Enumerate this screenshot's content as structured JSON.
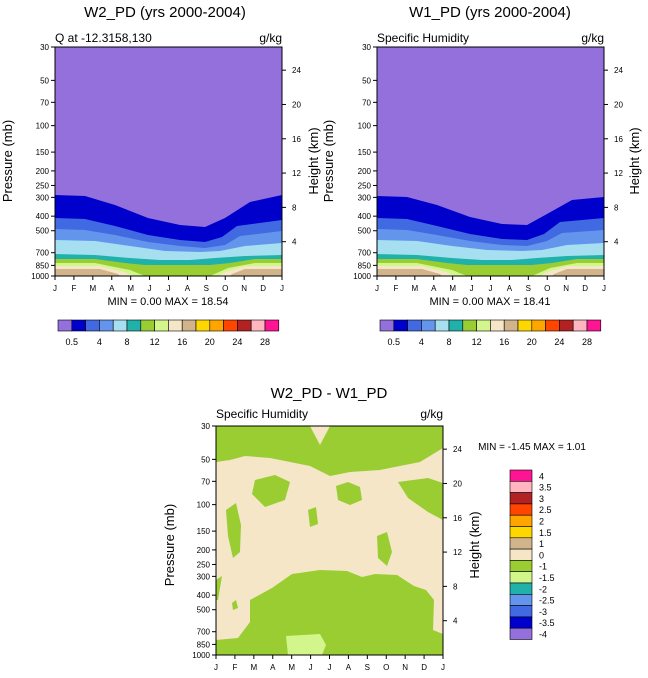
{
  "palette": {
    "levels": [
      "0.5",
      "4",
      "8",
      "12",
      "16",
      "20",
      "24",
      "28"
    ],
    "colors": [
      "#9370db",
      "#0000cd",
      "#4169e1",
      "#6495ed",
      "#a6e0f0",
      "#20b2aa",
      "#9acd32",
      "#d2f58c",
      "#f5e6c8",
      "#d2b48c",
      "#ffd700",
      "#ffa500",
      "#ff4500",
      "#b22222",
      "#ffb6c1",
      "#ff1493"
    ]
  },
  "chart_data": [
    {
      "type": "heatmap",
      "title": "W2_PD (yrs 2000-2004)",
      "subtitle_left": "Q at -12.3158,130",
      "subtitle_right": "g/kg",
      "ylabel": "Pressure (mb)",
      "ylabel_right": "Height (km)",
      "x_ticks": [
        "J",
        "F",
        "M",
        "A",
        "M",
        "J",
        "J",
        "A",
        "S",
        "O",
        "N",
        "D",
        "J"
      ],
      "y_ticks": [
        "30",
        "50",
        "70",
        "100",
        "150",
        "200",
        "250",
        "300",
        "400",
        "500",
        "700",
        "850",
        "1000"
      ],
      "height_ticks": [
        "24",
        "20",
        "16",
        "12",
        "8",
        "4"
      ],
      "min_max": "MIN =   0.00 MAX =  18.54",
      "min": 0.0,
      "max": 18.54
    },
    {
      "type": "heatmap",
      "title": "W1_PD (yrs 2000-2004)",
      "subtitle_left": "Specific Humidity",
      "subtitle_right": "g/kg",
      "ylabel": "Pressure (mb)",
      "ylabel_right": "Height (km)",
      "x_ticks": [
        "J",
        "F",
        "M",
        "A",
        "M",
        "J",
        "J",
        "A",
        "S",
        "O",
        "N",
        "D",
        "J"
      ],
      "y_ticks": [
        "30",
        "50",
        "70",
        "100",
        "150",
        "200",
        "250",
        "300",
        "400",
        "500",
        "700",
        "850",
        "1000"
      ],
      "height_ticks": [
        "24",
        "20",
        "16",
        "12",
        "8",
        "4"
      ],
      "min_max": "MIN =   0.00 MAX =  18.41",
      "min": 0.0,
      "max": 18.41
    },
    {
      "type": "heatmap",
      "title": "W2_PD - W1_PD",
      "subtitle_left": "Specific Humidity",
      "subtitle_right": "g/kg",
      "ylabel": "Pressure (mb)",
      "ylabel_right": "Height (km)",
      "x_ticks": [
        "J",
        "F",
        "M",
        "A",
        "M",
        "J",
        "J",
        "A",
        "S",
        "O",
        "N",
        "D",
        "J"
      ],
      "y_ticks": [
        "30",
        "50",
        "70",
        "100",
        "150",
        "200",
        "250",
        "300",
        "400",
        "500",
        "700",
        "850",
        "1000"
      ],
      "height_ticks": [
        "24",
        "20",
        "16",
        "12",
        "8",
        "4"
      ],
      "min_max": "MIN =  -1.45 MAX =   1.01",
      "min": -1.45,
      "max": 1.01,
      "legend_labels": [
        "4",
        "3.5",
        "3",
        "2.5",
        "2",
        "1.5",
        "1",
        "0",
        "-1",
        "-1.5",
        "-2",
        "-2.5",
        "-3",
        "-3.5",
        "-4"
      ],
      "legend_colors": [
        "#ff1493",
        "#ffb6c1",
        "#b22222",
        "#ff4500",
        "#ffa500",
        "#ffd700",
        "#d2b48c",
        "#f5e6c8",
        "#9acd32",
        "#d2f58c",
        "#20b2aa",
        "#6495ed",
        "#4169e1",
        "#0000cd",
        "#9370db"
      ]
    }
  ]
}
